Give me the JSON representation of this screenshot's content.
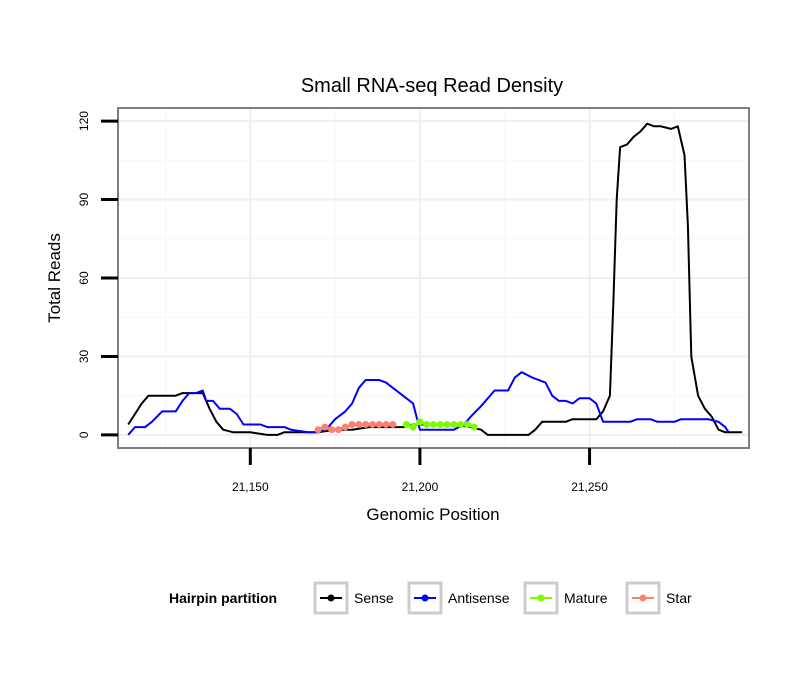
{
  "chart_data": {
    "type": "line",
    "title": "Small RNA-seq Read Density",
    "xlabel": "Genomic Position",
    "ylabel": "Total Reads",
    "xlim": [
      21111,
      21297
    ],
    "ylim": [
      -5,
      125
    ],
    "xticks": [
      21150,
      21200,
      21250
    ],
    "xtick_labels": [
      "21,150",
      "21,200",
      "21,250"
    ],
    "yticks": [
      0,
      30,
      60,
      90,
      120
    ],
    "ytick_labels": [
      "0",
      "30",
      "60",
      "90",
      "120"
    ],
    "grid": true,
    "legend": {
      "title": "Hairpin partition",
      "position": "bottom",
      "entries": [
        {
          "name": "Sense",
          "color": "#000000"
        },
        {
          "name": "Antisense",
          "color": "#0000ff"
        },
        {
          "name": "Mature",
          "color": "#7cfc00"
        },
        {
          "name": "Star",
          "color": "#fa8072"
        }
      ]
    },
    "series": [
      {
        "name": "Sense",
        "color": "#000000",
        "marker": false,
        "points": [
          [
            21114,
            4
          ],
          [
            21116,
            8
          ],
          [
            21118,
            12
          ],
          [
            21120,
            15
          ],
          [
            21125,
            15
          ],
          [
            21128,
            15
          ],
          [
            21130,
            16
          ],
          [
            21133,
            16
          ],
          [
            21136,
            16
          ],
          [
            21138,
            10
          ],
          [
            21140,
            5
          ],
          [
            21142,
            2
          ],
          [
            21145,
            1
          ],
          [
            21150,
            1
          ],
          [
            21155,
            0
          ],
          [
            21158,
            0
          ],
          [
            21160,
            1
          ],
          [
            21170,
            1
          ],
          [
            21175,
            2
          ],
          [
            21180,
            2
          ],
          [
            21185,
            3
          ],
          [
            21190,
            3
          ],
          [
            21195,
            3
          ],
          [
            21198,
            4
          ],
          [
            21201,
            4
          ],
          [
            21205,
            4
          ],
          [
            21210,
            4
          ],
          [
            21215,
            3
          ],
          [
            21218,
            2
          ],
          [
            21220,
            0
          ],
          [
            21225,
            0
          ],
          [
            21232,
            0
          ],
          [
            21234,
            2
          ],
          [
            21236,
            5
          ],
          [
            21240,
            5
          ],
          [
            21243,
            5
          ],
          [
            21245,
            6
          ],
          [
            21250,
            6
          ],
          [
            21252,
            6
          ],
          [
            21254,
            9
          ],
          [
            21255,
            12
          ],
          [
            21256,
            15
          ],
          [
            21257,
            50
          ],
          [
            21258,
            90
          ],
          [
            21259,
            110
          ],
          [
            21261,
            111
          ],
          [
            21263,
            114
          ],
          [
            21265,
            116
          ],
          [
            21267,
            119
          ],
          [
            21269,
            118
          ],
          [
            21271,
            118
          ],
          [
            21274,
            117
          ],
          [
            21276,
            118
          ],
          [
            21278,
            107
          ],
          [
            21279,
            80
          ],
          [
            21280,
            30
          ],
          [
            21282,
            15
          ],
          [
            21284,
            10
          ],
          [
            21286,
            7
          ],
          [
            21288,
            2
          ],
          [
            21290,
            1
          ],
          [
            21295,
            1
          ]
        ]
      },
      {
        "name": "Antisense",
        "color": "#0000ff",
        "marker": false,
        "points": [
          [
            21114,
            0
          ],
          [
            21116,
            3
          ],
          [
            21119,
            3
          ],
          [
            21121,
            5
          ],
          [
            21124,
            9
          ],
          [
            21128,
            9
          ],
          [
            21130,
            13
          ],
          [
            21132,
            16
          ],
          [
            21134,
            16
          ],
          [
            21136,
            17
          ],
          [
            21137,
            13
          ],
          [
            21139,
            13
          ],
          [
            21141,
            10
          ],
          [
            21144,
            10
          ],
          [
            21146,
            8
          ],
          [
            21148,
            4
          ],
          [
            21153,
            4
          ],
          [
            21155,
            3
          ],
          [
            21160,
            3
          ],
          [
            21162,
            2
          ],
          [
            21167,
            1
          ],
          [
            21170,
            1
          ],
          [
            21173,
            3
          ],
          [
            21175,
            6
          ],
          [
            21178,
            9
          ],
          [
            21180,
            12
          ],
          [
            21182,
            18
          ],
          [
            21184,
            21
          ],
          [
            21188,
            21
          ],
          [
            21190,
            20
          ],
          [
            21192,
            18
          ],
          [
            21194,
            16
          ],
          [
            21196,
            14
          ],
          [
            21198,
            12
          ],
          [
            21200,
            2
          ],
          [
            21205,
            2
          ],
          [
            21210,
            2
          ],
          [
            21213,
            4
          ],
          [
            21215,
            7
          ],
          [
            21218,
            11
          ],
          [
            21222,
            17
          ],
          [
            21226,
            17
          ],
          [
            21228,
            22
          ],
          [
            21230,
            24
          ],
          [
            21233,
            22
          ],
          [
            21235,
            21
          ],
          [
            21237,
            20
          ],
          [
            21239,
            15
          ],
          [
            21241,
            13
          ],
          [
            21243,
            13
          ],
          [
            21245,
            12
          ],
          [
            21247,
            14
          ],
          [
            21250,
            14
          ],
          [
            21252,
            12
          ],
          [
            21254,
            5
          ],
          [
            21258,
            5
          ],
          [
            21262,
            5
          ],
          [
            21264,
            6
          ],
          [
            21268,
            6
          ],
          [
            21270,
            5
          ],
          [
            21275,
            5
          ],
          [
            21277,
            6
          ],
          [
            21280,
            6
          ],
          [
            21285,
            6
          ],
          [
            21288,
            5
          ],
          [
            21290,
            3
          ],
          [
            21291,
            1
          ]
        ]
      },
      {
        "name": "Mature",
        "color": "#7cfc00",
        "marker": true,
        "points": [
          [
            21196,
            4
          ],
          [
            21198,
            3
          ],
          [
            21200,
            5
          ],
          [
            21202,
            4
          ],
          [
            21204,
            4
          ],
          [
            21206,
            4
          ],
          [
            21208,
            4
          ],
          [
            21210,
            4
          ],
          [
            21212,
            4
          ],
          [
            21214,
            4
          ],
          [
            21216,
            3
          ]
        ]
      },
      {
        "name": "Star",
        "color": "#fa8072",
        "marker": true,
        "points": [
          [
            21170,
            2
          ],
          [
            21172,
            3
          ],
          [
            21174,
            2
          ],
          [
            21176,
            2
          ],
          [
            21178,
            3
          ],
          [
            21180,
            4
          ],
          [
            21182,
            4
          ],
          [
            21184,
            4
          ],
          [
            21186,
            4
          ],
          [
            21188,
            4
          ],
          [
            21190,
            4
          ],
          [
            21192,
            4
          ]
        ]
      }
    ]
  }
}
